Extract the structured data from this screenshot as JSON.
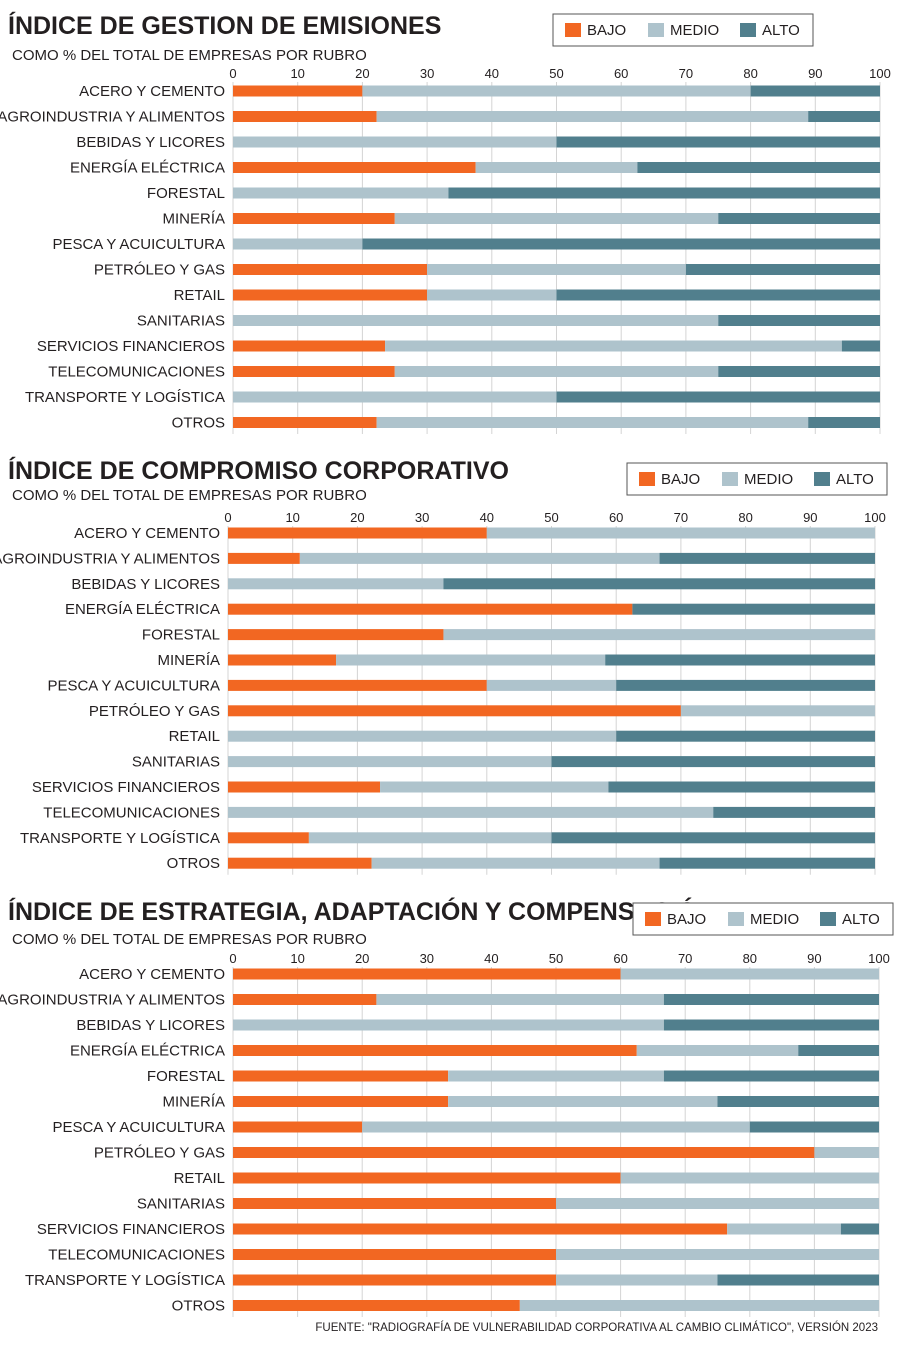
{
  "colors": {
    "bajo": "#f26722",
    "medio": "#aec3cc",
    "alto": "#517f8d",
    "grid": "#d4d4d4",
    "text": "#231f20"
  },
  "source": "FUENTE:  \"RADIOGRAFÍA DE VULNERABILIDAD CORPORATIVA AL CAMBIO CLIMÁTICO\", VERSIÓN 2023",
  "chart_data": [
    {
      "type": "bar",
      "orientation": "horizontal",
      "stacked": true,
      "title": "ÍNDICE DE GESTION DE EMISIONES",
      "subtitle": "COMO % DEL TOTAL DE EMPRESAS POR RUBRO",
      "xlim": [
        0,
        100
      ],
      "xticks": [
        0,
        10,
        20,
        30,
        40,
        50,
        60,
        70,
        80,
        90,
        100
      ],
      "grid": true,
      "legend_position": "top-right",
      "categories": [
        "ACERO Y CEMENTO",
        "AGROINDUSTRIA Y ALIMENTOS",
        "BEBIDAS Y LICORES",
        "ENERGÍA ELÉCTRICA",
        "FORESTAL",
        "MINERÍA",
        "PESCA Y ACUICULTURA",
        "PETRÓLEO Y GAS",
        "RETAIL",
        "SANITARIAS",
        "SERVICIOS FINANCIEROS",
        "TELECOMUNICACIONES",
        "TRANSPORTE Y LOGÍSTICA",
        "OTROS"
      ],
      "series": [
        {
          "name": "BAJO",
          "values": [
            20,
            22.2,
            0,
            37.5,
            0,
            25,
            0,
            30,
            30,
            0,
            23.5,
            25,
            0,
            22.2
          ]
        },
        {
          "name": "MEDIO",
          "values": [
            60,
            66.7,
            50,
            25,
            33.3,
            50,
            20,
            40,
            20,
            75,
            70.6,
            50,
            50,
            66.7
          ]
        },
        {
          "name": "ALTO",
          "values": [
            20,
            11.1,
            50,
            37.5,
            66.7,
            25,
            80,
            30,
            50,
            25,
            5.9,
            25,
            50,
            11.1
          ]
        }
      ]
    },
    {
      "type": "bar",
      "orientation": "horizontal",
      "stacked": true,
      "title": "ÍNDICE DE COMPROMISO CORPORATIVO",
      "subtitle": "COMO % DEL TOTAL DE EMPRESAS POR RUBRO",
      "xlim": [
        0,
        100
      ],
      "xticks": [
        0,
        10,
        20,
        30,
        40,
        50,
        60,
        70,
        80,
        90,
        100
      ],
      "grid": true,
      "legend_position": "top-right",
      "categories": [
        "ACERO Y CEMENTO",
        "AGROINDUSTRIA Y ALIMENTOS",
        "BEBIDAS Y LICORES",
        "ENERGÍA ELÉCTRICA",
        "FORESTAL",
        "MINERÍA",
        "PESCA Y ACUICULTURA",
        "PETRÓLEO Y GAS",
        "RETAIL",
        "SANITARIAS",
        "SERVICIOS FINANCIEROS",
        "TELECOMUNICACIONES",
        "TRANSPORTE Y LOGÍSTICA",
        "OTROS"
      ],
      "series": [
        {
          "name": "BAJO",
          "values": [
            40,
            11.1,
            0,
            62.5,
            33.3,
            16.7,
            40,
            70,
            0,
            0,
            23.5,
            0,
            12.5,
            22.2
          ]
        },
        {
          "name": "MEDIO",
          "values": [
            60,
            55.6,
            33.3,
            0,
            66.7,
            41.6,
            20,
            30,
            60,
            50,
            35.3,
            75,
            37.5,
            44.5
          ]
        },
        {
          "name": "ALTO",
          "values": [
            0,
            33.3,
            66.7,
            37.5,
            0,
            41.7,
            40,
            0,
            40,
            50,
            41.2,
            25,
            50,
            33.3
          ]
        }
      ]
    },
    {
      "type": "bar",
      "orientation": "horizontal",
      "stacked": true,
      "title": "ÍNDICE DE ESTRATEGIA, ADAPTACIÓN Y COMPENSACIÓN",
      "subtitle": "COMO % DEL TOTAL DE EMPRESAS POR RUBRO",
      "xlim": [
        0,
        100
      ],
      "xticks": [
        0,
        10,
        20,
        30,
        40,
        50,
        60,
        70,
        80,
        90,
        100
      ],
      "grid": true,
      "legend_position": "top-right",
      "categories": [
        "ACERO Y CEMENTO",
        "AGROINDUSTRIA Y ALIMENTOS",
        "BEBIDAS Y LICORES",
        "ENERGÍA ELÉCTRICA",
        "FORESTAL",
        "MINERÍA",
        "PESCA Y ACUICULTURA",
        "PETRÓLEO Y GAS",
        "RETAIL",
        "SANITARIAS",
        "SERVICIOS FINANCIEROS",
        "TELECOMUNICACIONES",
        "TRANSPORTE Y LOGÍSTICA",
        "OTROS"
      ],
      "series": [
        {
          "name": "BAJO",
          "values": [
            60,
            22.2,
            0,
            62.5,
            33.3,
            33.3,
            20,
            90,
            60,
            50,
            76.5,
            50,
            50,
            44.4
          ]
        },
        {
          "name": "MEDIO",
          "values": [
            40,
            44.5,
            66.7,
            25,
            33.4,
            41.7,
            60,
            10,
            40,
            50,
            17.6,
            50,
            25,
            55.6
          ]
        },
        {
          "name": "ALTO",
          "values": [
            0,
            33.3,
            33.3,
            12.5,
            33.3,
            25,
            20,
            0,
            0,
            0,
            5.9,
            0,
            25,
            0
          ]
        }
      ]
    }
  ]
}
